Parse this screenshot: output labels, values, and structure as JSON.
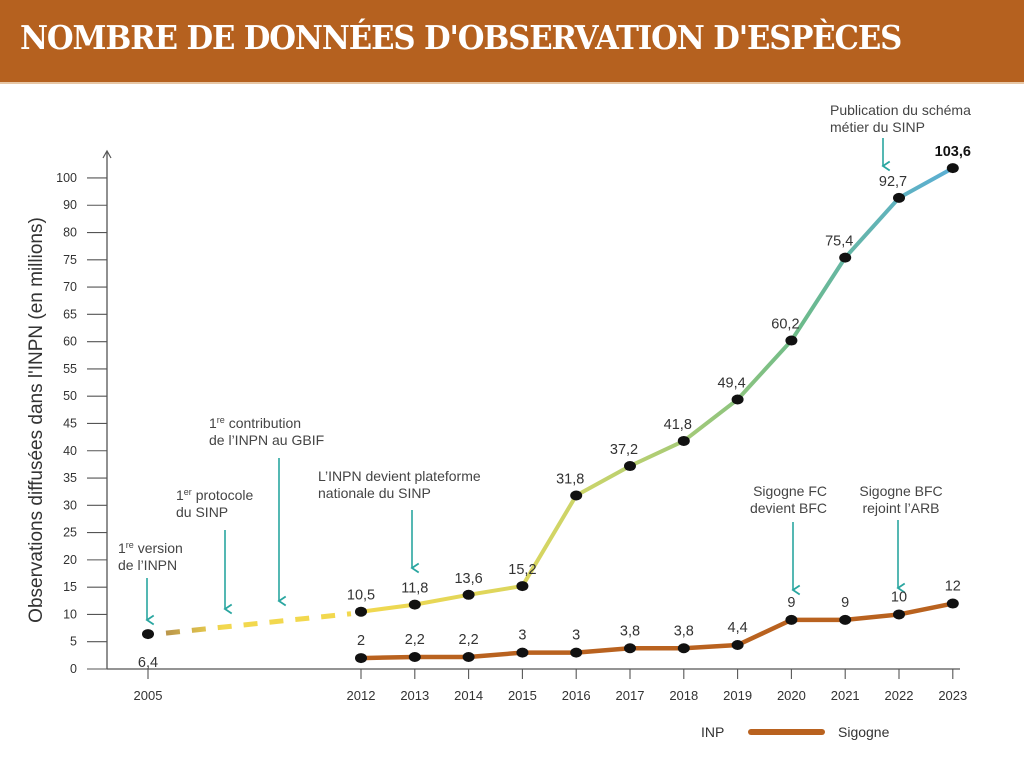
{
  "title": "NOMBRE DE DONNÉES D'OBSERVATION D'ESPÈCES",
  "colors": {
    "banner": "#b5611f",
    "sigogne": "#b9621f",
    "inp_gradient": [
      "#f2d84e",
      "#c9d46b",
      "#6dbb8a",
      "#5aaed6"
    ],
    "inp_dashed_start": "#a8804a",
    "inp_dashed": "#f2d84e",
    "annotation_arrow": "#2aa6a0",
    "marker": "#111111"
  },
  "chart_data": {
    "type": "line",
    "title": "NOMBRE DE DONNÉES D'OBSERVATION D'ESPÈCES",
    "xlabel": "",
    "ylabel": "Observations diffusées dans l'INPN (en millions)",
    "y_ticks": [
      0,
      5,
      10,
      15,
      20,
      25,
      30,
      35,
      40,
      45,
      50,
      55,
      60,
      65,
      70,
      75,
      80,
      90,
      100
    ],
    "ylim": [
      0,
      100
    ],
    "x_ticks": [
      2005,
      2012,
      2013,
      2014,
      2015,
      2016,
      2017,
      2018,
      2019,
      2020,
      2021,
      2022,
      2023
    ],
    "grid": false,
    "legend_position": "bottom-right",
    "series": [
      {
        "name": "INP",
        "x": [
          2005,
          2012,
          2013,
          2014,
          2015,
          2016,
          2017,
          2018,
          2019,
          2020,
          2021,
          2022,
          2023
        ],
        "values": [
          6.4,
          10.5,
          11.8,
          13.6,
          15.2,
          31.8,
          37.2,
          41.8,
          49.4,
          60.2,
          75.4,
          92.7,
          103.6
        ],
        "labels": [
          "6,4",
          "10,5",
          "11,8",
          "13,6",
          "15,2",
          "31,8",
          "37,2",
          "41,8",
          "49,4",
          "60,2",
          "75,4",
          "92,7",
          "103,6"
        ],
        "dashed_between": [
          2005,
          2012
        ]
      },
      {
        "name": "Sigogne",
        "x": [
          2012,
          2013,
          2014,
          2015,
          2016,
          2017,
          2018,
          2019,
          2020,
          2021,
          2022,
          2023
        ],
        "values": [
          2,
          2.2,
          2.2,
          3,
          3,
          3.8,
          3.8,
          4.4,
          9,
          9,
          10,
          12
        ],
        "labels": [
          "2",
          "2,2",
          "2,2",
          "3",
          "3",
          "3,8",
          "3,8",
          "4,4",
          "9",
          "9",
          "10",
          "12"
        ]
      }
    ],
    "annotations": [
      {
        "lines": [
          "1re version",
          "de l'INPN"
        ],
        "sup": "re"
      },
      {
        "lines": [
          "1er protocole",
          "du SINP"
        ],
        "sup": "er"
      },
      {
        "lines": [
          "1re contribution",
          "de l'INPN au GBIF"
        ],
        "sup": "re"
      },
      {
        "lines": [
          "L'INPN devient plateforme",
          "nationale du SINP"
        ]
      },
      {
        "lines": [
          "Sigogne FC",
          "devient BFC"
        ]
      },
      {
        "lines": [
          "Sigogne BFC",
          "rejoint l'ARB"
        ]
      },
      {
        "lines": [
          "Publication du schéma",
          "métier du SINP"
        ]
      }
    ]
  },
  "annotation_text": {
    "a1_num": "1",
    "a1_sup": "re",
    "a1_rest": " version",
    "a1_line2": "de l’INPN",
    "a2_num": "1",
    "a2_sup": "er",
    "a2_rest": " protocole",
    "a2_line2": "du SINP",
    "a3_num": "1",
    "a3_sup": "re",
    "a3_rest": " contribution",
    "a3_line2": "de l’INPN au GBIF",
    "a4_line1": "L’INPN devient plateforme",
    "a4_line2": "nationale du SINP",
    "a5_line1": "Sigogne FC",
    "a5_line2": "devient BFC",
    "a6_line1": "Sigogne BFC",
    "a6_line2": "rejoint l’ARB",
    "a7_line1": "Publication du schéma",
    "a7_line2": "métier du SINP"
  },
  "legend": [
    {
      "name": "INP"
    },
    {
      "name": "Sigogne"
    }
  ]
}
